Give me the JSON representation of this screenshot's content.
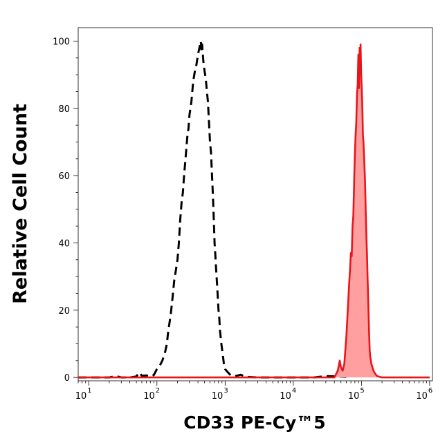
{
  "chart_data": {
    "type": "area",
    "title": "",
    "xlabel": "CD33 PE-Cy™5",
    "ylabel": "Relative Cell Count",
    "x_scale": "log",
    "xlim": [
      7,
      1100000
    ],
    "ylim": [
      -1,
      104
    ],
    "x_ticks": [
      {
        "base": "10",
        "exp": "1",
        "value": 10
      },
      {
        "base": "10",
        "exp": "2",
        "value": 100
      },
      {
        "base": "10",
        "exp": "3",
        "value": 1000
      },
      {
        "base": "10",
        "exp": "4",
        "value": 10000
      },
      {
        "base": "10",
        "exp": "5",
        "value": 100000
      },
      {
        "base": "10",
        "exp": "6",
        "value": 1000000
      }
    ],
    "y_ticks": [
      "0",
      "20",
      "40",
      "60",
      "80",
      "100"
    ],
    "grid": false,
    "legend": "none",
    "series": [
      {
        "style": "dashed",
        "color": "#000000",
        "fill": "none",
        "points": [
          [
            7,
            0
          ],
          [
            20,
            0
          ],
          [
            25,
            0.4
          ],
          [
            30,
            0
          ],
          [
            40,
            0
          ],
          [
            50,
            0.3
          ],
          [
            55,
            1.5
          ],
          [
            60,
            0.5
          ],
          [
            70,
            0.6
          ],
          [
            80,
            0.3
          ],
          [
            90,
            0.7
          ],
          [
            100,
            2.5
          ],
          [
            110,
            3.5
          ],
          [
            120,
            5
          ],
          [
            130,
            7
          ],
          [
            140,
            10
          ],
          [
            145,
            13
          ],
          [
            150,
            15
          ],
          [
            160,
            19
          ],
          [
            170,
            24
          ],
          [
            180,
            29
          ],
          [
            190,
            32
          ],
          [
            200,
            35
          ],
          [
            210,
            40
          ],
          [
            220,
            47
          ],
          [
            230,
            52
          ],
          [
            240,
            55
          ],
          [
            250,
            60
          ],
          [
            260,
            64
          ],
          [
            270,
            68
          ],
          [
            280,
            72
          ],
          [
            290,
            74
          ],
          [
            300,
            78
          ],
          [
            320,
            82
          ],
          [
            340,
            88
          ],
          [
            360,
            91
          ],
          [
            380,
            93
          ],
          [
            400,
            96
          ],
          [
            420,
            98
          ],
          [
            440,
            100
          ],
          [
            450,
            97
          ],
          [
            460,
            99
          ],
          [
            480,
            94
          ],
          [
            500,
            91
          ],
          [
            520,
            89
          ],
          [
            540,
            85
          ],
          [
            560,
            82
          ],
          [
            580,
            76
          ],
          [
            600,
            70
          ],
          [
            620,
            67
          ],
          [
            640,
            61
          ],
          [
            660,
            55
          ],
          [
            680,
            48
          ],
          [
            700,
            40
          ],
          [
            720,
            36
          ],
          [
            740,
            32
          ],
          [
            760,
            28
          ],
          [
            780,
            24
          ],
          [
            800,
            20
          ],
          [
            820,
            18
          ],
          [
            840,
            14
          ],
          [
            880,
            10
          ],
          [
            920,
            7
          ],
          [
            960,
            4
          ],
          [
            1000,
            2.5
          ],
          [
            1100,
            1.5
          ],
          [
            1200,
            0.7
          ],
          [
            1400,
            0.4
          ],
          [
            1700,
            0.8
          ],
          [
            2000,
            0.2
          ],
          [
            3000,
            0
          ],
          [
            20000,
            0
          ],
          [
            30000,
            0.4
          ],
          [
            60000,
            0.2
          ]
        ]
      },
      {
        "style": "solid",
        "color": "#e8151b",
        "fill": "#ff9f9f",
        "points": [
          [
            7,
            0
          ],
          [
            40000,
            0
          ],
          [
            45000,
            2
          ],
          [
            48000,
            5
          ],
          [
            50000,
            3
          ],
          [
            53000,
            2
          ],
          [
            56000,
            4
          ],
          [
            60000,
            12
          ],
          [
            63000,
            20
          ],
          [
            66000,
            28
          ],
          [
            68000,
            32
          ],
          [
            70000,
            37
          ],
          [
            72000,
            36
          ],
          [
            74000,
            45
          ],
          [
            76000,
            48
          ],
          [
            78000,
            58
          ],
          [
            80000,
            66
          ],
          [
            82000,
            72
          ],
          [
            84000,
            76
          ],
          [
            86000,
            84
          ],
          [
            88000,
            87
          ],
          [
            90000,
            96
          ],
          [
            91000,
            90
          ],
          [
            92000,
            86
          ],
          [
            93000,
            90
          ],
          [
            94000,
            98
          ],
          [
            95000,
            94
          ],
          [
            96000,
            93
          ],
          [
            97000,
            99
          ],
          [
            99000,
            90
          ],
          [
            101000,
            86
          ],
          [
            103000,
            80
          ],
          [
            105000,
            72
          ],
          [
            107000,
            70
          ],
          [
            109000,
            66
          ],
          [
            111000,
            62
          ],
          [
            113000,
            58
          ],
          [
            115000,
            51
          ],
          [
            117000,
            45
          ],
          [
            119000,
            40
          ],
          [
            121000,
            36
          ],
          [
            123000,
            30
          ],
          [
            126000,
            22
          ],
          [
            129000,
            14
          ],
          [
            132000,
            8
          ],
          [
            135000,
            6
          ],
          [
            140000,
            4
          ],
          [
            145000,
            3
          ],
          [
            150000,
            2
          ],
          [
            160000,
            1
          ],
          [
            170000,
            0.4
          ],
          [
            200000,
            0
          ],
          [
            1000000,
            0
          ]
        ]
      }
    ]
  }
}
